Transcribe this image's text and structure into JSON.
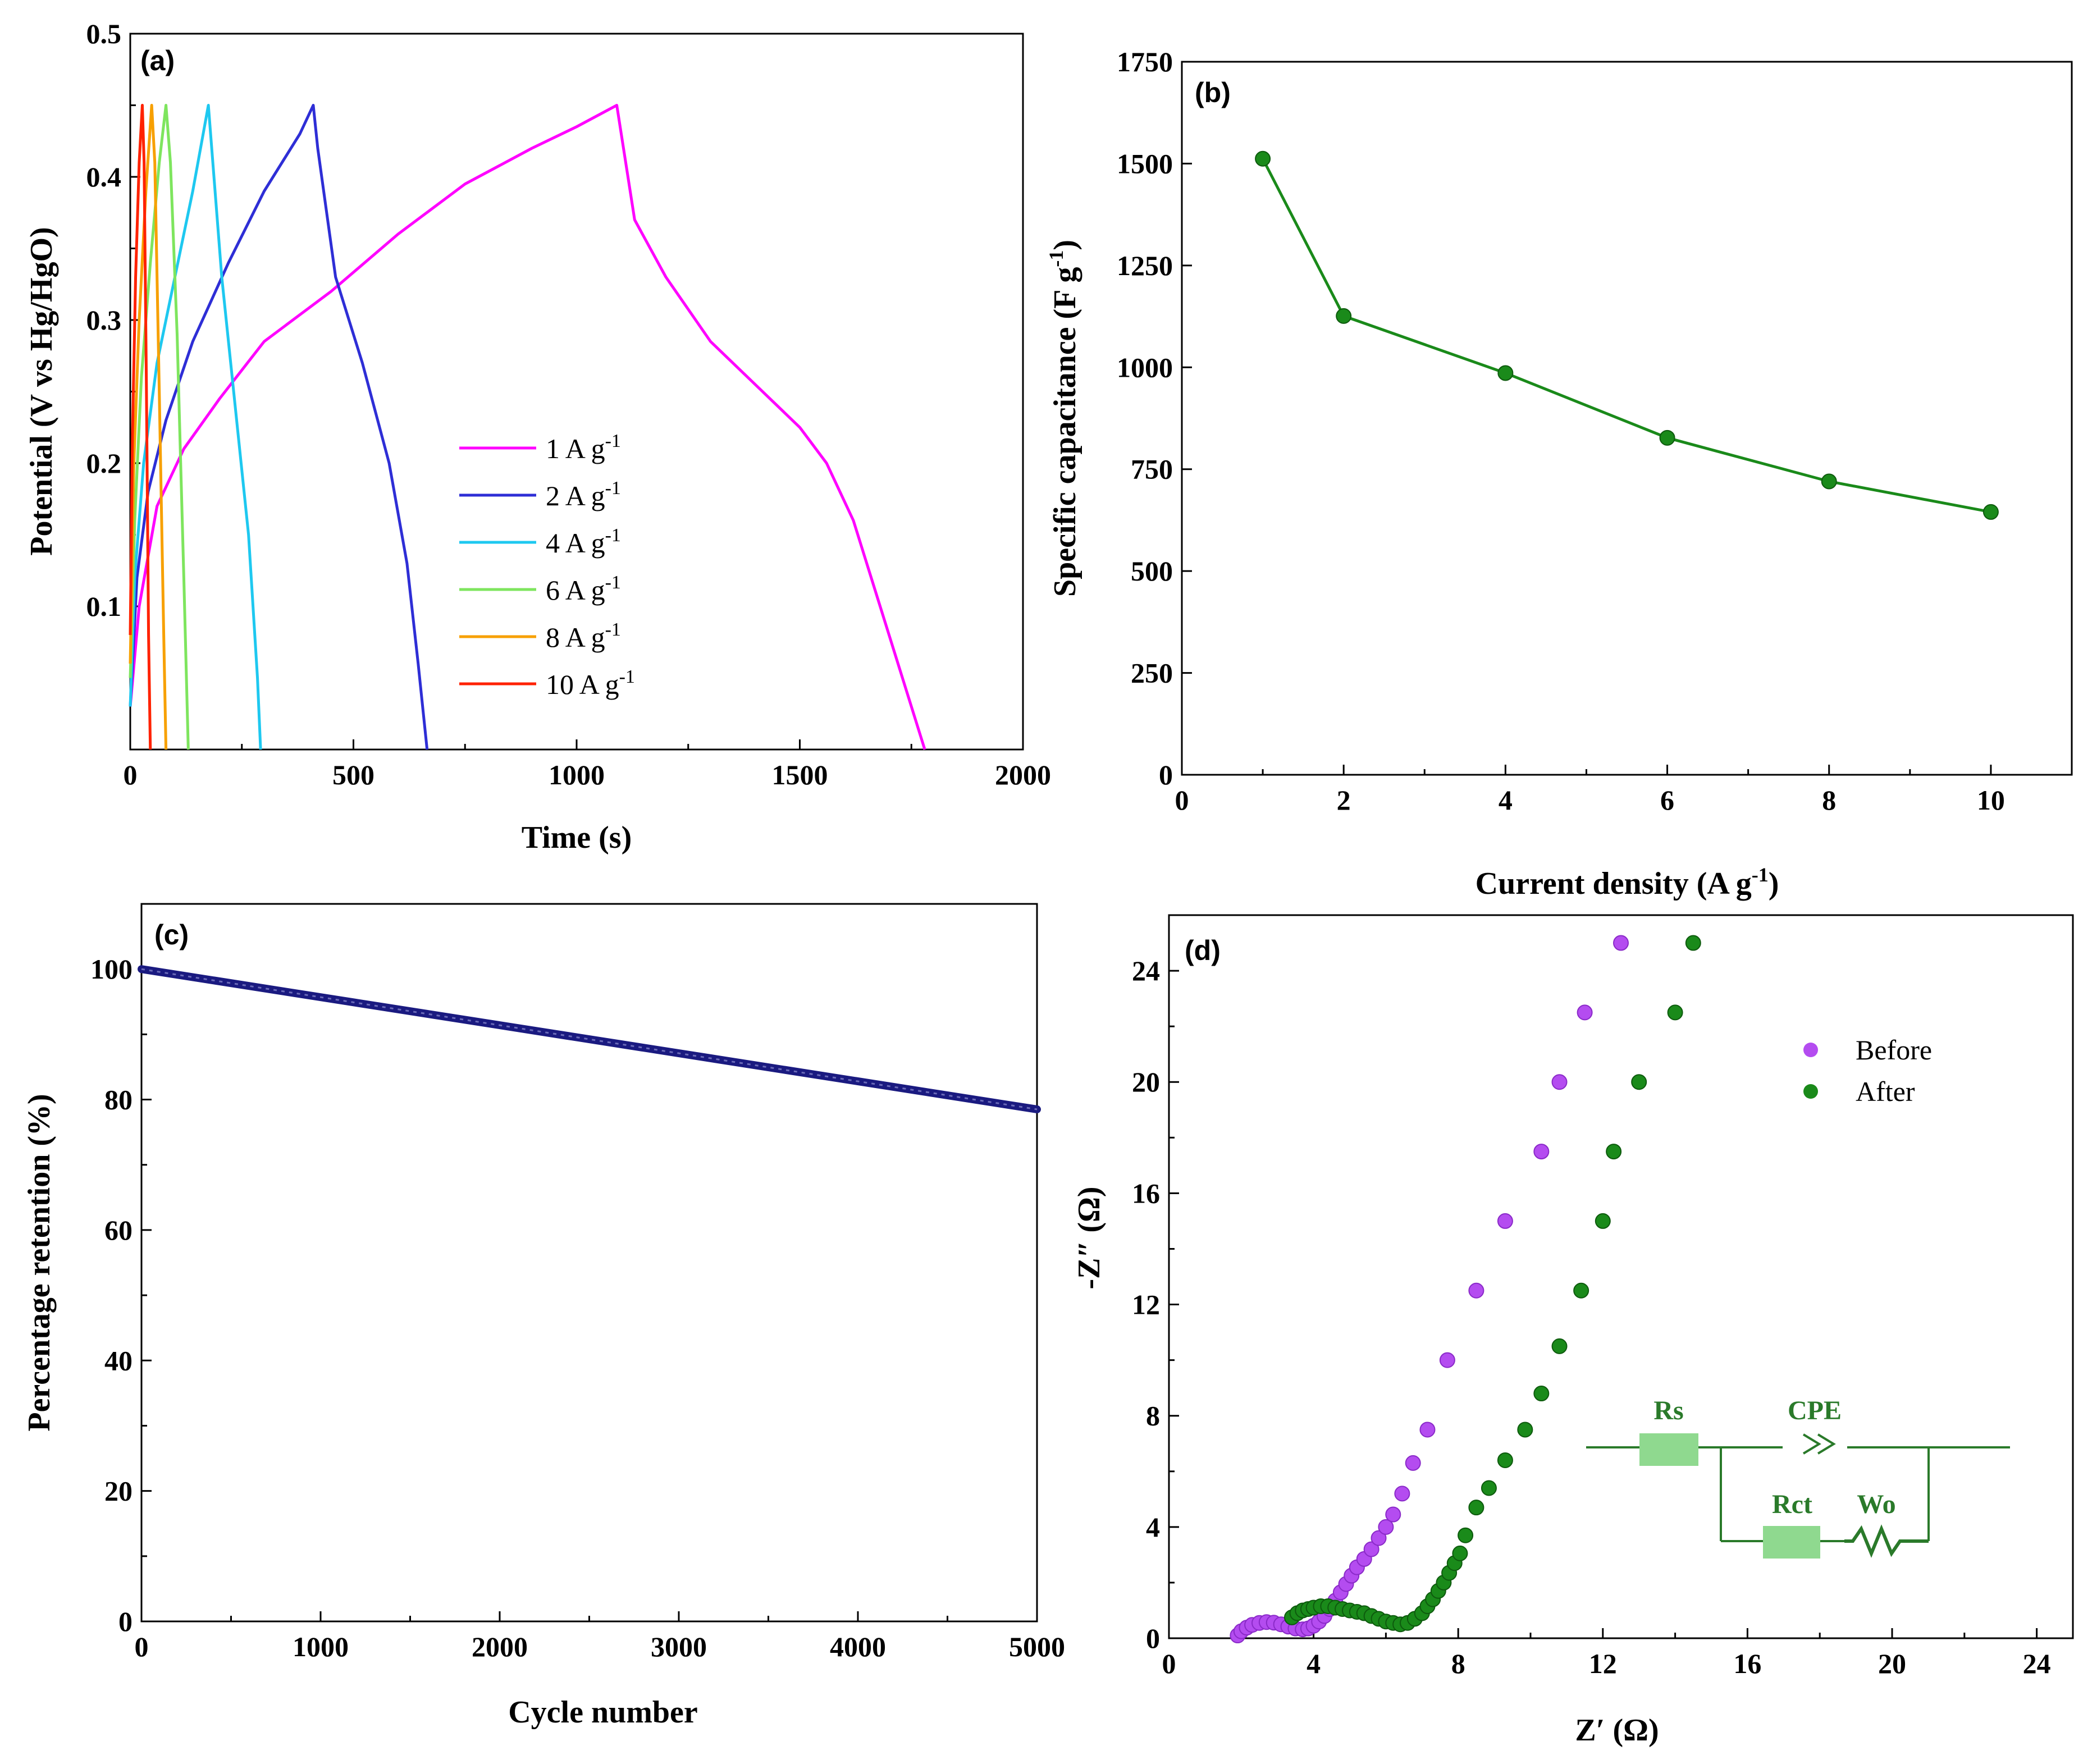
{
  "chart_data": [
    {
      "panel": "(a)",
      "type": "line",
      "title": "",
      "xlabel": "Time (s)",
      "ylabel": "Potential (V vs Hg/HgO)",
      "xlim": [
        0,
        2000
      ],
      "ylim": [
        0,
        0.5
      ],
      "xticks": [
        0,
        500,
        1000,
        1500,
        2000
      ],
      "yticks": [
        0.1,
        0.2,
        0.3,
        0.4,
        0.5
      ],
      "xtick_labels": [
        "0",
        "500",
        "1000",
        "1500",
        "2000"
      ],
      "ytick_labels": [
        "0.1",
        "0.2",
        "0.3",
        "0.4",
        "0.5"
      ],
      "legend_position": "center",
      "series": [
        {
          "name": "1 A g",
          "superscript": "-1",
          "color": "#ff00ff",
          "x": [
            0,
            20,
            60,
            120,
            200,
            300,
            450,
            600,
            750,
            900,
            1000,
            1090,
            1100,
            1130,
            1200,
            1300,
            1400,
            1500,
            1560,
            1620,
            1680,
            1740,
            1780
          ],
          "y": [
            0.03,
            0.1,
            0.17,
            0.21,
            0.245,
            0.285,
            0.32,
            0.36,
            0.395,
            0.42,
            0.435,
            0.45,
            0.43,
            0.37,
            0.33,
            0.285,
            0.255,
            0.225,
            0.2,
            0.16,
            0.1,
            0.04,
            0.0
          ]
        },
        {
          "name": "2 A g",
          "superscript": "-1",
          "color": "#2e2ed6",
          "x": [
            0,
            15,
            40,
            80,
            140,
            220,
            300,
            380,
            410,
            420,
            460,
            520,
            580,
            620,
            645,
            665
          ],
          "y": [
            0.03,
            0.12,
            0.18,
            0.23,
            0.285,
            0.34,
            0.39,
            0.43,
            0.45,
            0.42,
            0.33,
            0.27,
            0.2,
            0.13,
            0.06,
            0.0
          ]
        },
        {
          "name": "4 A g",
          "superscript": "-1",
          "color": "#1ec8f0",
          "x": [
            0,
            10,
            30,
            60,
            100,
            140,
            175,
            185,
            205,
            235,
            265,
            285,
            292
          ],
          "y": [
            0.03,
            0.12,
            0.2,
            0.27,
            0.33,
            0.39,
            0.45,
            0.41,
            0.33,
            0.24,
            0.15,
            0.05,
            0.0
          ]
        },
        {
          "name": "6 A g",
          "superscript": "-1",
          "color": "#7ee55e",
          "x": [
            0,
            10,
            25,
            45,
            65,
            80,
            90,
            105,
            120,
            130
          ],
          "y": [
            0.05,
            0.16,
            0.26,
            0.34,
            0.41,
            0.45,
            0.41,
            0.29,
            0.12,
            0.0
          ]
        },
        {
          "name": "8 A g",
          "superscript": "-1",
          "color": "#f7a000",
          "x": [
            0,
            8,
            20,
            35,
            48,
            55,
            65,
            75,
            80
          ],
          "y": [
            0.06,
            0.2,
            0.3,
            0.39,
            0.45,
            0.41,
            0.25,
            0.08,
            0.0
          ]
        },
        {
          "name": "10 A g",
          "superscript": "-1",
          "color": "#ff2200",
          "x": [
            0,
            5,
            12,
            20,
            27,
            31,
            36,
            41,
            45
          ],
          "y": [
            0.08,
            0.22,
            0.33,
            0.41,
            0.45,
            0.41,
            0.26,
            0.08,
            0.0
          ]
        }
      ]
    },
    {
      "panel": "(b)",
      "type": "line",
      "title": "",
      "xlabel": "Current density (A g",
      "xlabel_sup": "-1",
      "xlabel_end": ")",
      "ylabel": "Specific capacitance (F g",
      "ylabel_sup": "-1",
      "ylabel_end": ")",
      "xlim": [
        0,
        11
      ],
      "ylim": [
        0,
        1750
      ],
      "xticks": [
        0,
        2,
        4,
        6,
        8,
        10
      ],
      "yticks": [
        0,
        250,
        500,
        750,
        1000,
        1250,
        1500,
        1750
      ],
      "xtick_labels": [
        "0",
        "2",
        "4",
        "6",
        "8",
        "10"
      ],
      "ytick_labels": [
        "0",
        "250",
        "500",
        "750",
        "1000",
        "1250",
        "1500",
        "1750"
      ],
      "color": "#1a8a1a",
      "x": [
        1,
        2,
        4,
        6,
        8,
        10
      ],
      "y": [
        1512,
        1126,
        986,
        827,
        720,
        645
      ]
    },
    {
      "panel": "(c)",
      "type": "line",
      "title": "",
      "xlabel": "Cycle number",
      "ylabel": "Percentage retention (%)",
      "xlim": [
        0,
        5000
      ],
      "ylim": [
        0,
        110
      ],
      "xticks": [
        0,
        1000,
        2000,
        3000,
        4000,
        5000
      ],
      "yticks": [
        0,
        20,
        40,
        60,
        80,
        100
      ],
      "xtick_labels": [
        "0",
        "1000",
        "2000",
        "3000",
        "4000",
        "5000"
      ],
      "ytick_labels": [
        "0",
        "20",
        "40",
        "60",
        "80",
        "100"
      ],
      "color": "#1a1a80",
      "x": [
        0,
        5000
      ],
      "y": [
        100,
        78.5
      ]
    },
    {
      "panel": "(d)",
      "type": "scatter",
      "title": "",
      "xlabel": "Z′ (Ω)",
      "ylabel": "-Z″ (Ω)",
      "xlim": [
        0,
        25
      ],
      "ylim": [
        0,
        26
      ],
      "xticks": [
        0,
        4,
        8,
        12,
        16,
        20,
        24
      ],
      "yticks": [
        0,
        4,
        8,
        12,
        16,
        20,
        24
      ],
      "xtick_labels": [
        "0",
        "4",
        "8",
        "12",
        "16",
        "20",
        "24"
      ],
      "ytick_labels": [
        "0",
        "4",
        "8",
        "12",
        "16",
        "20",
        "24"
      ],
      "legend_position": "top-right",
      "series": [
        {
          "name": "Before",
          "color": "#b44cf0",
          "x": [
            1.9,
            2.0,
            2.15,
            2.3,
            2.5,
            2.7,
            2.9,
            3.1,
            3.3,
            3.5,
            3.7,
            3.85,
            4.0,
            4.15,
            4.3,
            4.45,
            4.6,
            4.75,
            4.9,
            5.05,
            5.2,
            5.4,
            5.6,
            5.8,
            6.0,
            6.2,
            6.45,
            6.75,
            7.15,
            7.7,
            8.5,
            9.3,
            10.3,
            10.8,
            11.5,
            12.5
          ],
          "y": [
            0.1,
            0.25,
            0.38,
            0.48,
            0.55,
            0.58,
            0.56,
            0.5,
            0.42,
            0.35,
            0.32,
            0.35,
            0.45,
            0.6,
            0.8,
            1.05,
            1.35,
            1.65,
            1.95,
            2.25,
            2.55,
            2.85,
            3.2,
            3.6,
            4.0,
            4.45,
            5.2,
            6.3,
            7.5,
            10.0,
            12.5,
            15.0,
            17.5,
            20.0,
            22.5,
            25.0
          ]
        },
        {
          "name": "After",
          "color": "#1a8a1a",
          "x": [
            3.4,
            3.55,
            3.7,
            3.85,
            4.0,
            4.2,
            4.4,
            4.6,
            4.8,
            5.0,
            5.2,
            5.4,
            5.6,
            5.8,
            6.0,
            6.2,
            6.4,
            6.6,
            6.8,
            7.0,
            7.15,
            7.3,
            7.45,
            7.6,
            7.75,
            7.9,
            8.05,
            8.2,
            8.5,
            8.85,
            9.3,
            9.85,
            10.3,
            10.8,
            11.4,
            12.0,
            12.3,
            13.0,
            14.0,
            14.5
          ],
          "y": [
            0.75,
            0.9,
            1.0,
            1.05,
            1.1,
            1.15,
            1.15,
            1.1,
            1.05,
            1.0,
            0.95,
            0.9,
            0.8,
            0.7,
            0.6,
            0.55,
            0.5,
            0.55,
            0.7,
            0.9,
            1.15,
            1.4,
            1.7,
            2.0,
            2.35,
            2.7,
            3.05,
            3.7,
            4.7,
            5.4,
            6.4,
            7.5,
            8.8,
            10.5,
            12.5,
            15.0,
            17.5,
            20.0,
            22.5,
            25.0
          ]
        }
      ],
      "circuit": {
        "rs": "Rs",
        "cpe": "CPE",
        "rct": "Rct",
        "wo": "Wo",
        "color": "#2a7a2a",
        "block_color": "#8fd98f"
      }
    }
  ]
}
